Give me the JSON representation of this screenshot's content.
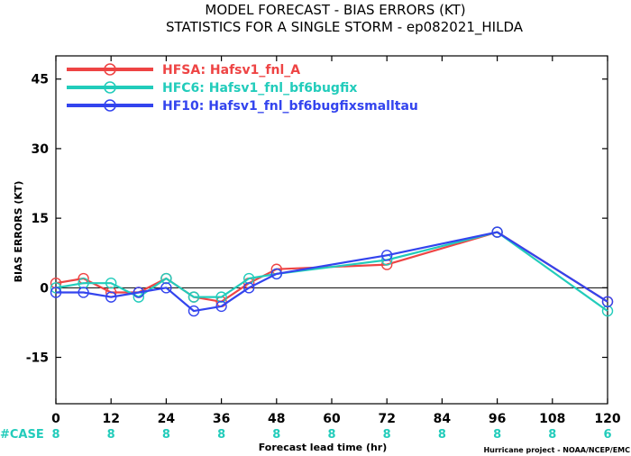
{
  "chart_data": {
    "type": "line",
    "title": "MODEL FORECAST - BIAS ERRORS (KT)",
    "subtitle": "STATISTICS FOR A SINGLE STORM - ep082021_HILDA",
    "xlabel": "Forecast lead time (hr)",
    "ylabel": "BIAS ERRORS (KT)",
    "xlim": [
      0,
      120
    ],
    "ylim": [
      -25,
      50
    ],
    "x_ticks": [
      0,
      12,
      24,
      36,
      48,
      60,
      72,
      84,
      96,
      108,
      120
    ],
    "y_ticks": [
      -15,
      0,
      15,
      30,
      45
    ],
    "zero_line": 0,
    "legend_position": "top-left",
    "series": [
      {
        "name": "HFSA: Hafsv1_fnl_A",
        "color": "#ee4444",
        "points": [
          [
            0,
            1
          ],
          [
            6,
            2
          ],
          [
            12,
            -1
          ],
          [
            18,
            -1
          ],
          [
            24,
            2
          ],
          [
            30,
            -2
          ],
          [
            36,
            -3
          ],
          [
            42,
            1
          ],
          [
            48,
            4
          ],
          [
            72,
            5
          ],
          [
            96,
            12
          ],
          [
            120,
            -3
          ]
        ]
      },
      {
        "name": "HFC6: Hafsv1_fnl_bf6bugfix",
        "color": "#22ccbb",
        "points": [
          [
            0,
            0
          ],
          [
            6,
            1
          ],
          [
            12,
            1
          ],
          [
            18,
            -2
          ],
          [
            24,
            2
          ],
          [
            30,
            -2
          ],
          [
            36,
            -2
          ],
          [
            42,
            2
          ],
          [
            48,
            3
          ],
          [
            72,
            6
          ],
          [
            96,
            12
          ],
          [
            120,
            -5
          ]
        ]
      },
      {
        "name": "HF10: Hafsv1_fnl_bf6bugfixsmalltau",
        "color": "#3344ee",
        "points": [
          [
            0,
            -1
          ],
          [
            6,
            -1
          ],
          [
            12,
            -2
          ],
          [
            18,
            -1
          ],
          [
            24,
            0
          ],
          [
            30,
            -5
          ],
          [
            36,
            -4
          ],
          [
            42,
            0
          ],
          [
            48,
            3
          ],
          [
            72,
            7
          ],
          [
            96,
            12
          ],
          [
            120,
            -3
          ]
        ]
      }
    ],
    "case_label": "#CASE",
    "case_color": "#22ccbb",
    "case_counts": [
      {
        "x": 0,
        "n": "8"
      },
      {
        "x": 12,
        "n": "8"
      },
      {
        "x": 24,
        "n": "8"
      },
      {
        "x": 36,
        "n": "8"
      },
      {
        "x": 48,
        "n": "8"
      },
      {
        "x": 60,
        "n": "8"
      },
      {
        "x": 72,
        "n": "8"
      },
      {
        "x": 84,
        "n": "8"
      },
      {
        "x": 96,
        "n": "8"
      },
      {
        "x": 108,
        "n": "8"
      },
      {
        "x": 120,
        "n": "6"
      }
    ],
    "credit": "Hurricane project - NOAA/NCEP/EMC"
  }
}
